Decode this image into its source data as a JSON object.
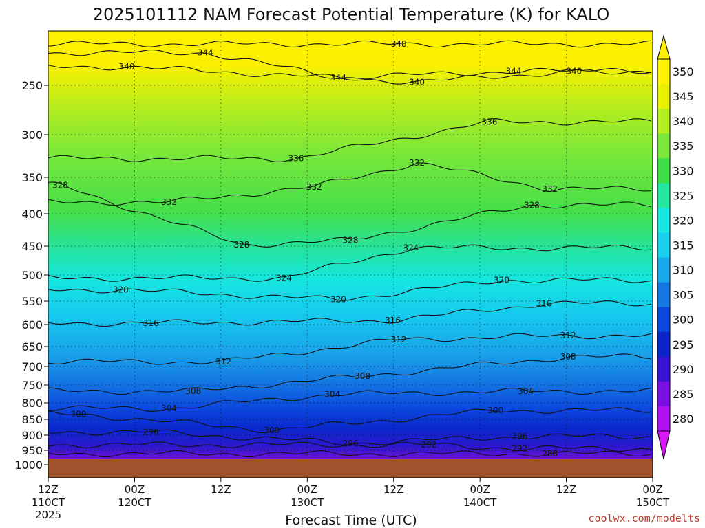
{
  "chart_data": {
    "type": "heatmap",
    "title": "2025101112 NAM Forecast Potential Temperature (K) for KALO",
    "xlabel": "Forecast Time (UTC)",
    "ylabel": "",
    "y_axis_ticks": [
      "250",
      "300",
      "350",
      "400",
      "450",
      "500",
      "550",
      "600",
      "650",
      "700",
      "750",
      "800",
      "850",
      "900",
      "950",
      "1000"
    ],
    "x_axis_ticks": [
      {
        "top": "12Z",
        "bottom": "110CT",
        "extra": "2025"
      },
      {
        "top": "00Z",
        "bottom": "120CT",
        "extra": ""
      },
      {
        "top": "12Z",
        "bottom": "",
        "extra": ""
      },
      {
        "top": "00Z",
        "bottom": "130CT",
        "extra": ""
      },
      {
        "top": "12Z",
        "bottom": "",
        "extra": ""
      },
      {
        "top": "00Z",
        "bottom": "140CT",
        "extra": ""
      },
      {
        "top": "12Z",
        "bottom": "",
        "extra": ""
      },
      {
        "top": "00Z",
        "bottom": "150CT",
        "extra": ""
      }
    ],
    "colorbar_levels": [
      "350",
      "345",
      "340",
      "335",
      "330",
      "325",
      "320",
      "315",
      "310",
      "305",
      "300",
      "295",
      "290",
      "285",
      "280"
    ],
    "colorbar_colors": [
      "#fff200",
      "#e6f000",
      "#b4ee1e",
      "#7ce83c",
      "#3ede46",
      "#24e6a0",
      "#18e8e0",
      "#18cfee",
      "#1aa8ea",
      "#1478e2",
      "#0c48dc",
      "#0a24c8",
      "#3a14d2",
      "#7a10e0",
      "#b010f0"
    ],
    "ground_color": "#a0522d",
    "contour_labels": [
      {
        "text": "348",
        "t": 0.58,
        "p": 212
      },
      {
        "text": "344",
        "t": 0.26,
        "p": 220
      },
      {
        "text": "344",
        "t": 0.48,
        "p": 243
      },
      {
        "text": "344",
        "t": 0.77,
        "p": 237
      },
      {
        "text": "340",
        "t": 0.13,
        "p": 233
      },
      {
        "text": "340",
        "t": 0.61,
        "p": 247
      },
      {
        "text": "340",
        "t": 0.87,
        "p": 237
      },
      {
        "text": "336",
        "t": 0.73,
        "p": 287
      },
      {
        "text": "336",
        "t": 0.41,
        "p": 328
      },
      {
        "text": "332",
        "t": 0.61,
        "p": 333
      },
      {
        "text": "332",
        "t": 0.44,
        "p": 363
      },
      {
        "text": "332",
        "t": 0.83,
        "p": 366
      },
      {
        "text": "332",
        "t": 0.2,
        "p": 384
      },
      {
        "text": "328",
        "t": 0.02,
        "p": 361
      },
      {
        "text": "328",
        "t": 0.8,
        "p": 388
      },
      {
        "text": "328",
        "t": 0.32,
        "p": 448
      },
      {
        "text": "328",
        "t": 0.5,
        "p": 441
      },
      {
        "text": "324",
        "t": 0.6,
        "p": 453
      },
      {
        "text": "324",
        "t": 0.39,
        "p": 506
      },
      {
        "text": "320",
        "t": 0.75,
        "p": 510
      },
      {
        "text": "320",
        "t": 0.12,
        "p": 528
      },
      {
        "text": "320",
        "t": 0.48,
        "p": 547
      },
      {
        "text": "316",
        "t": 0.82,
        "p": 555
      },
      {
        "text": "316",
        "t": 0.57,
        "p": 591
      },
      {
        "text": "316",
        "t": 0.17,
        "p": 597
      },
      {
        "text": "312",
        "t": 0.86,
        "p": 625
      },
      {
        "text": "312",
        "t": 0.58,
        "p": 634
      },
      {
        "text": "312",
        "t": 0.29,
        "p": 688
      },
      {
        "text": "308",
        "t": 0.86,
        "p": 676
      },
      {
        "text": "308",
        "t": 0.52,
        "p": 726
      },
      {
        "text": "308",
        "t": 0.24,
        "p": 767
      },
      {
        "text": "304",
        "t": 0.79,
        "p": 767
      },
      {
        "text": "304",
        "t": 0.47,
        "p": 776
      },
      {
        "text": "304",
        "t": 0.2,
        "p": 817
      },
      {
        "text": "300",
        "t": 0.74,
        "p": 823
      },
      {
        "text": "300",
        "t": 0.05,
        "p": 834
      },
      {
        "text": "300",
        "t": 0.37,
        "p": 885
      },
      {
        "text": "296",
        "t": 0.17,
        "p": 890
      },
      {
        "text": "296",
        "t": 0.78,
        "p": 904
      },
      {
        "text": "296",
        "t": 0.5,
        "p": 927
      },
      {
        "text": "292",
        "t": 0.63,
        "p": 932
      },
      {
        "text": "292",
        "t": 0.78,
        "p": 944
      },
      {
        "text": "288",
        "t": 0.83,
        "p": 962
      }
    ]
  },
  "credit": "coolwx.com/modelts"
}
